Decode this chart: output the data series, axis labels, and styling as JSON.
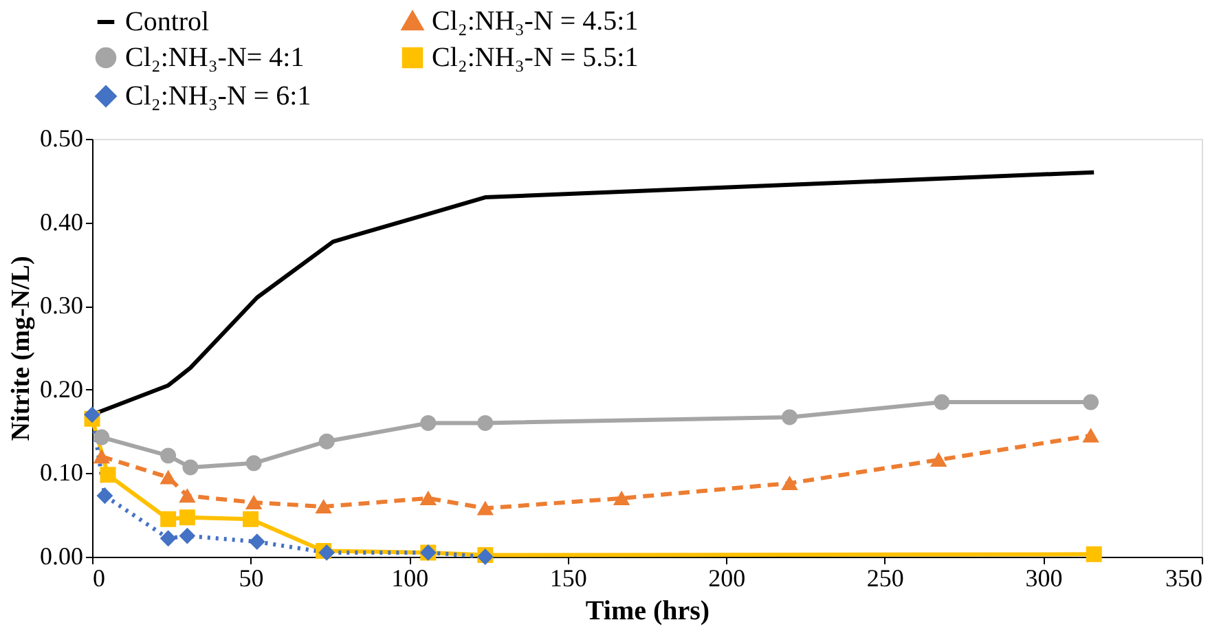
{
  "chart_data": {
    "type": "line",
    "xlabel": "Time (hrs)",
    "ylabel": "Nitrite (mg-N/L)",
    "xlim": [
      0,
      350
    ],
    "xticks": [
      0,
      50,
      100,
      150,
      200,
      250,
      300,
      350
    ],
    "ylim": [
      0,
      0.5
    ],
    "yticks": [
      {
        "value": 0,
        "label": "0.00"
      },
      {
        "value": 0.1,
        "label": "0.10"
      },
      {
        "value": 0.2,
        "label": "0.20"
      },
      {
        "value": 0.3,
        "label": "0.30"
      },
      {
        "value": 0.4,
        "label": "0.40"
      },
      {
        "value": 0.5,
        "label": "0.50"
      }
    ],
    "grid": false,
    "legend": "top",
    "series": [
      {
        "name": "Control",
        "color": "#000000",
        "marker": "none",
        "line_style": "solid",
        "x": [
          0,
          24,
          31,
          52,
          76,
          106,
          124,
          316
        ],
        "values": [
          0.17,
          0.205,
          0.226,
          0.31,
          0.377,
          0.41,
          0.43,
          0.46
        ]
      },
      {
        "name": "Cl₂:NH₃-N = 4.5:1",
        "color": "#ed7d31",
        "marker": "triangle",
        "line_style": "dashed",
        "x": [
          3,
          24,
          30,
          51,
          73,
          106,
          124,
          167,
          220,
          267,
          315
        ],
        "values": [
          0.12,
          0.095,
          0.073,
          0.065,
          0.06,
          0.07,
          0.058,
          0.07,
          0.088,
          0.116,
          0.145
        ]
      },
      {
        "name": "Cl₂:NH₃-N= 4:1",
        "color": "#a5a5a5",
        "marker": "circle",
        "line_style": "solid",
        "x": [
          3,
          24,
          31,
          51,
          74,
          106,
          124,
          220,
          268,
          315
        ],
        "values": [
          0.143,
          0.121,
          0.107,
          0.112,
          0.138,
          0.16,
          0.16,
          0.167,
          0.185,
          0.185
        ]
      },
      {
        "name": "Cl₂:NH₃-N = 5.5:1",
        "color": "#ffc000",
        "marker": "square",
        "line_style": "solid",
        "x": [
          0,
          5,
          24,
          30,
          50,
          73,
          106,
          124,
          316
        ],
        "values": [
          0.165,
          0.098,
          0.045,
          0.047,
          0.045,
          0.007,
          0.005,
          0.002,
          0.003
        ]
      },
      {
        "name": "Cl₂:NH₃-N = 6:1",
        "color": "#4472c4",
        "marker": "diamond",
        "line_style": "dotted",
        "x": [
          0,
          4,
          24,
          30,
          52,
          74,
          106,
          124
        ],
        "values": [
          0.17,
          0.073,
          0.022,
          0.025,
          0.018,
          0.005,
          0.005,
          0.0
        ]
      }
    ]
  }
}
